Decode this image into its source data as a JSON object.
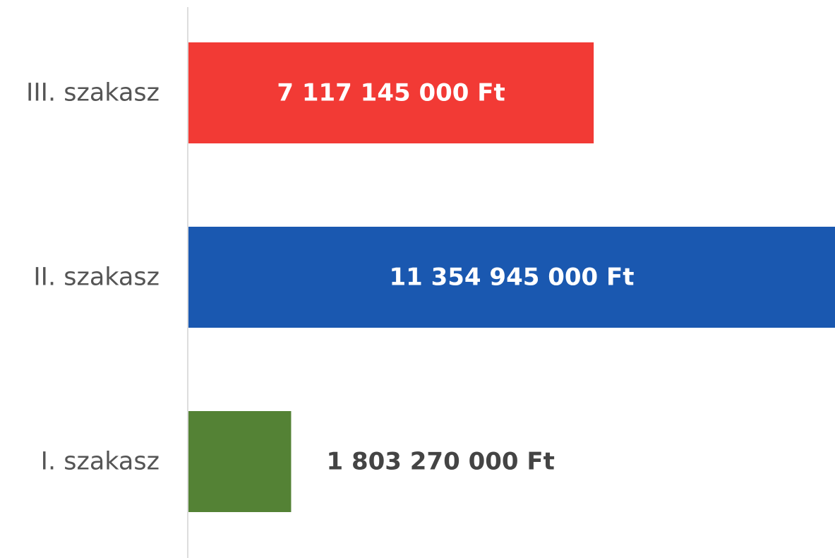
{
  "chart_data": {
    "type": "barh",
    "categories": [
      "III. szakasz",
      "II. szakasz",
      "I. szakasz"
    ],
    "values": [
      7117145000,
      11354945000,
      1803270000
    ],
    "value_labels": [
      "7 117 145 000 Ft",
      "11 354 945 000 Ft",
      "1 803 270 000 Ft"
    ],
    "colors": [
      "#f23a35",
      "#1a58b0",
      "#548235"
    ],
    "xlim": [
      0,
      11354945000
    ]
  }
}
